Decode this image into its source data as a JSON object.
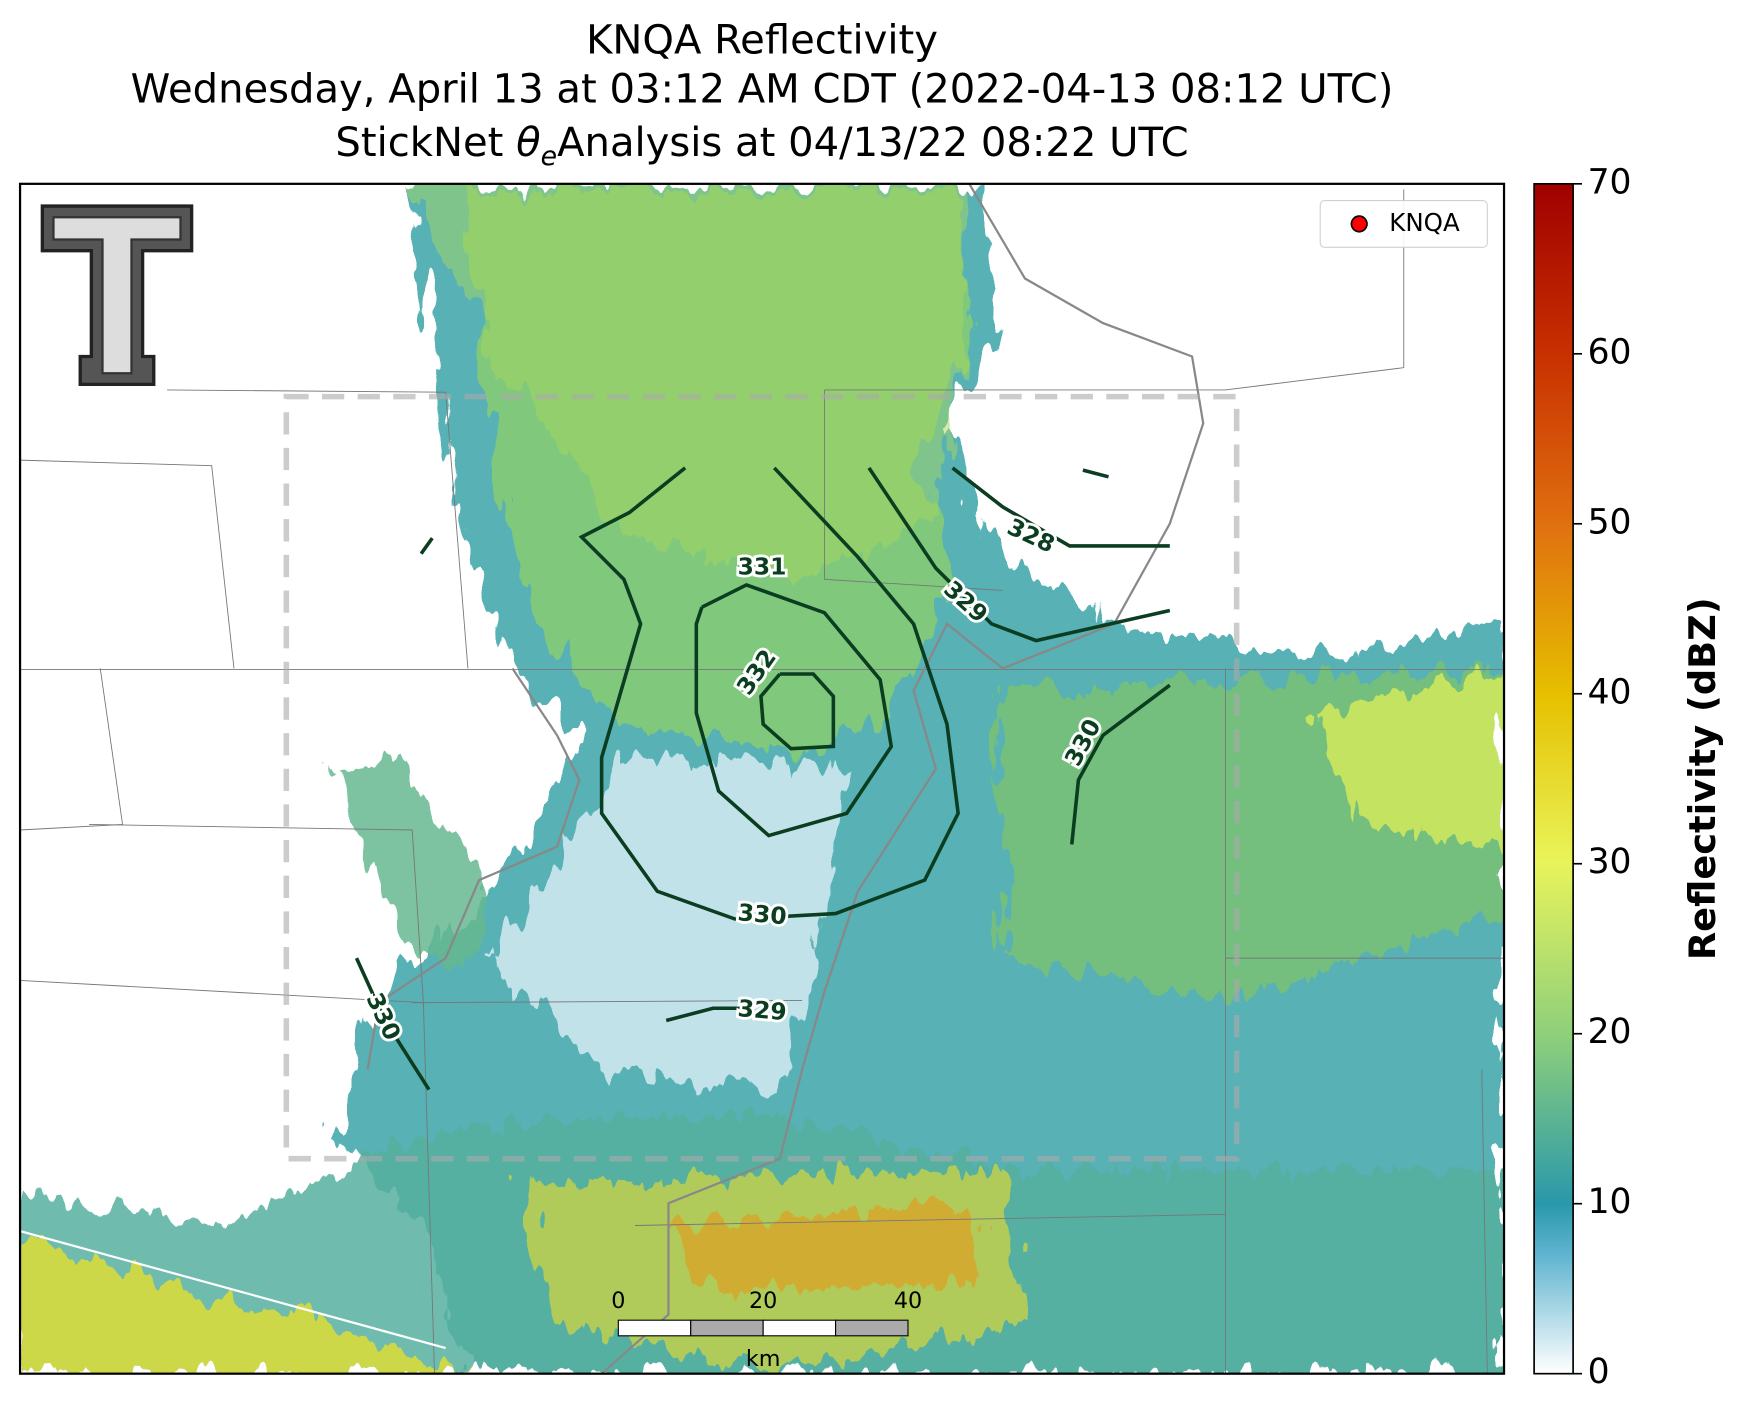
{
  "title": "KNQA Reflectivity",
  "subtitle": "Wednesday, April 13 at 03:12 AM CDT (2022-04-13 08:12 UTC)",
  "analysis": {
    "before": "StickNet",
    "symbol": "θ",
    "subscript": "e",
    "after": "Analysis at 04/13/22 08:22 UTC"
  },
  "legend": {
    "label": "KNQA"
  },
  "contours": [
    {
      "label": 328
    },
    {
      "label": 329
    },
    {
      "label": 330
    },
    {
      "label": 331
    },
    {
      "label": 332
    },
    {
      "label": 330
    },
    {
      "label": 329
    },
    {
      "label": 330
    }
  ],
  "colorbar": {
    "label": "Reflectivity (dBZ)",
    "lim": [
      0,
      70
    ],
    "ticks": [
      0,
      10,
      20,
      30,
      40,
      50,
      60,
      70
    ]
  },
  "scale_bar": {
    "ticks": [
      0,
      20,
      40
    ],
    "unit": "km"
  }
}
